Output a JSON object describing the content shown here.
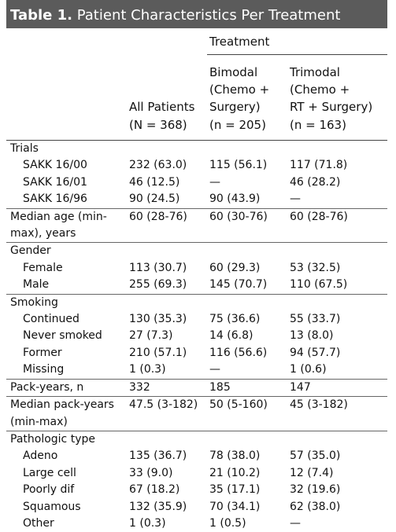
{
  "title": {
    "label": "Table 1.",
    "text": "Patient Characteristics Per Treatment"
  },
  "header": {
    "group": "Treatment",
    "columns": [
      {
        "lines": [
          "All Patients",
          "(N = 368)"
        ]
      },
      {
        "lines": [
          "Bimodal",
          "(Chemo +",
          "Surgery)",
          "(n = 205)"
        ]
      },
      {
        "lines": [
          "Trimodal",
          "(Chemo +",
          "RT + Surgery)",
          "(n = 163)"
        ]
      }
    ]
  },
  "sections": [
    {
      "heading": "Trials",
      "rows": [
        {
          "label": [
            "SAKK 16/00"
          ],
          "values": [
            "232 (63.0)",
            "115 (56.1)",
            "117 (71.8)"
          ]
        },
        {
          "label": [
            "SAKK 16/01"
          ],
          "values": [
            "46 (12.5)",
            "—",
            "46 (28.2)"
          ]
        },
        {
          "label": [
            "SAKK 16/96"
          ],
          "values": [
            "90 (24.5)",
            "90 (43.9)",
            "—"
          ]
        }
      ]
    },
    {
      "rows": [
        {
          "label": [
            "Median age (min-",
            "max), years"
          ],
          "values": [
            "60 (28-76)",
            "60 (30-76)",
            "60 (28-76)"
          ]
        }
      ]
    },
    {
      "heading": "Gender",
      "rows": [
        {
          "label": [
            "Female"
          ],
          "values": [
            "113 (30.7)",
            "60 (29.3)",
            "53 (32.5)"
          ]
        },
        {
          "label": [
            "Male"
          ],
          "values": [
            "255 (69.3)",
            "145 (70.7)",
            "110 (67.5)"
          ]
        }
      ]
    },
    {
      "heading": "Smoking",
      "rows": [
        {
          "label": [
            "Continued"
          ],
          "values": [
            "130 (35.3)",
            "75 (36.6)",
            "55 (33.7)"
          ]
        },
        {
          "label": [
            "Never smoked"
          ],
          "values": [
            "27 (7.3)",
            "14 (6.8)",
            "13 (8.0)"
          ]
        },
        {
          "label": [
            "Former"
          ],
          "values": [
            "210 (57.1)",
            "116 (56.6)",
            "94 (57.7)"
          ]
        },
        {
          "label": [
            "Missing"
          ],
          "values": [
            "1 (0.3)",
            "—",
            "1 (0.6)"
          ]
        }
      ]
    },
    {
      "rows": [
        {
          "label": [
            "Pack-years, n"
          ],
          "values": [
            "332",
            "185",
            "147"
          ]
        }
      ]
    },
    {
      "rows": [
        {
          "label": [
            "Median pack-years",
            "(min-max)"
          ],
          "values": [
            "47.5 (3-182)",
            "50 (5-160)",
            "45 (3-182)"
          ]
        }
      ]
    },
    {
      "heading": "Pathologic type",
      "rows": [
        {
          "label": [
            "Adeno"
          ],
          "values": [
            "135 (36.7)",
            "78 (38.0)",
            "57 (35.0)"
          ]
        },
        {
          "label": [
            "Large cell"
          ],
          "values": [
            "33 (9.0)",
            "21 (10.2)",
            "12 (7.4)"
          ]
        },
        {
          "label": [
            "Poorly dif"
          ],
          "values": [
            "67 (18.2)",
            "35 (17.1)",
            "32 (19.6)"
          ]
        },
        {
          "label": [
            "Squamous"
          ],
          "values": [
            "132 (35.9)",
            "70 (34.1)",
            "62 (38.0)"
          ]
        },
        {
          "label": [
            "Other"
          ],
          "values": [
            "1 (0.3)",
            "1 (0.5)",
            "—"
          ]
        }
      ]
    }
  ]
}
